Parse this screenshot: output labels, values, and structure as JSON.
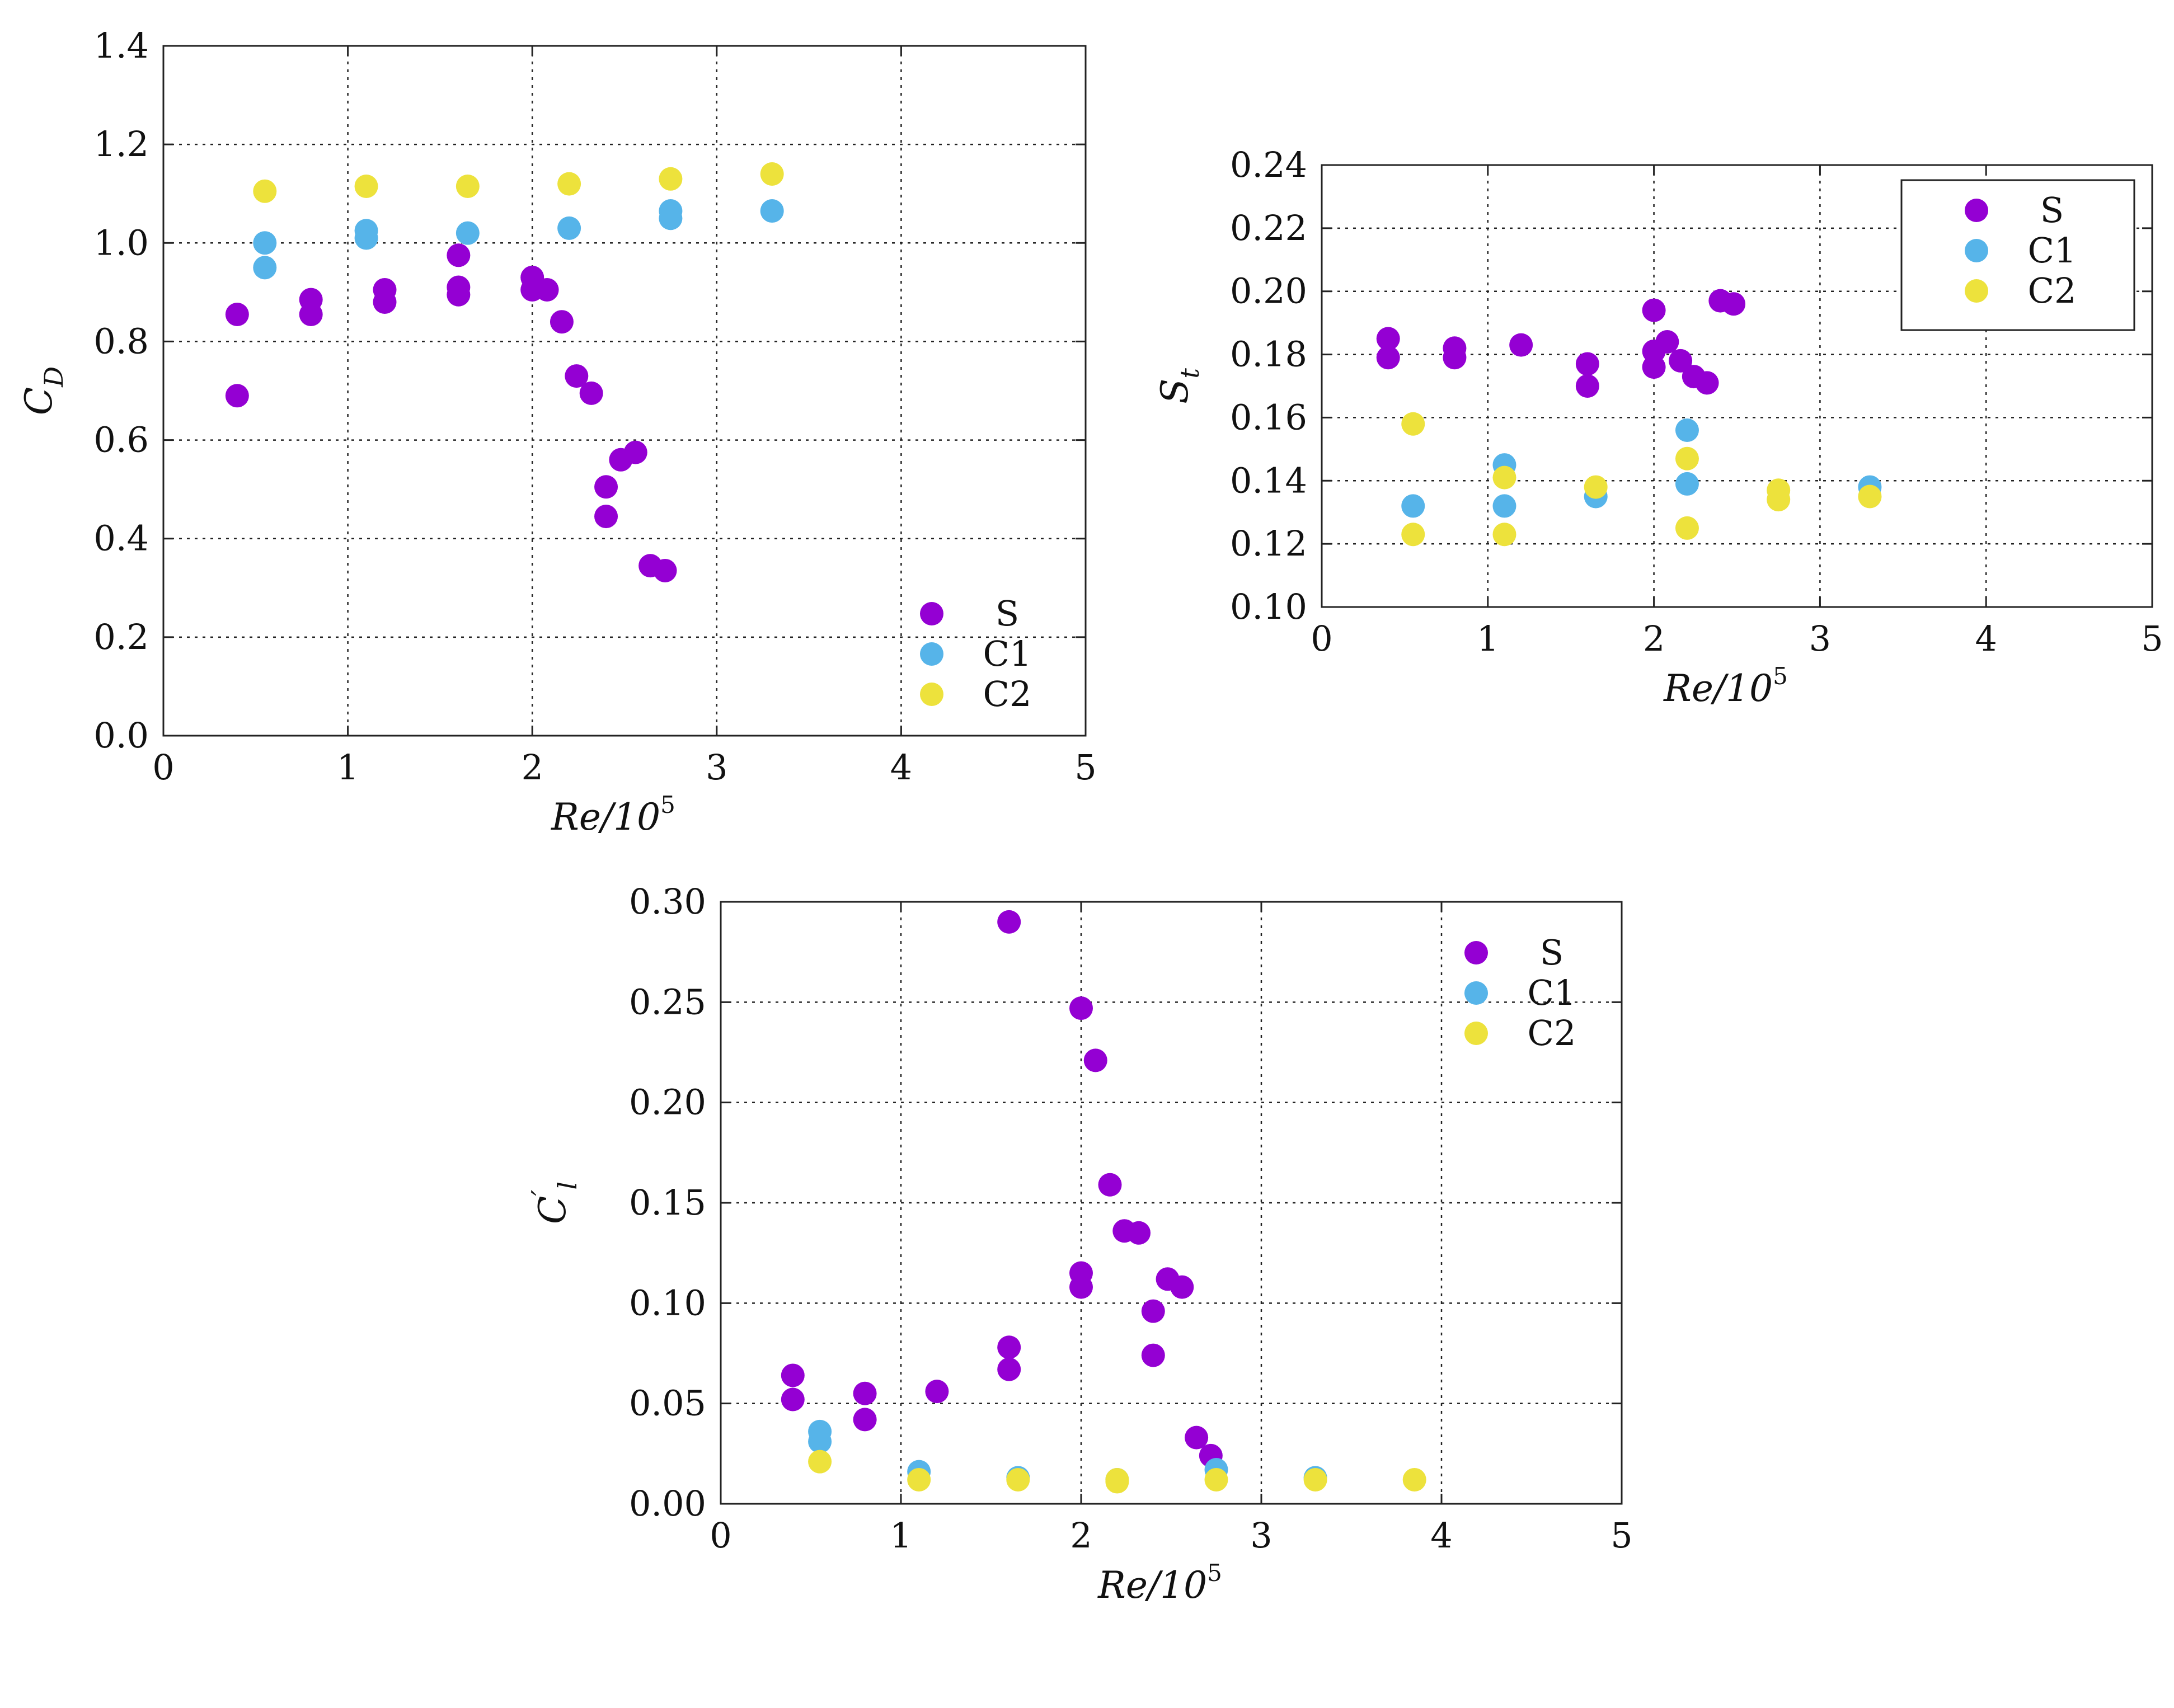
{
  "colors": {
    "S": "#9400D3",
    "C1": "#56B4E9",
    "C2": "#EDE23C"
  },
  "chart_data": [
    {
      "id": "cd",
      "type": "scatter",
      "xlabel": "Re/10^5",
      "xlabel_main": "Re/10",
      "xlabel_sup": "5",
      "ylabel": "C_D",
      "ylabel_main": "C",
      "ylabel_sub": "D",
      "ylabel_prime": "",
      "xlim": [
        0,
        5
      ],
      "ylim": [
        0,
        1.4
      ],
      "xticks": [
        0,
        1,
        2,
        3,
        4,
        5
      ],
      "xtick_labels": [
        "0",
        "1",
        "2",
        "3",
        "4",
        "5"
      ],
      "yticks": [
        0,
        0.2,
        0.4,
        0.6,
        0.8,
        1.0,
        1.2,
        1.4
      ],
      "ytick_labels": [
        "0.0",
        "0.2",
        "0.4",
        "0.6",
        "0.8",
        "1.0",
        "1.2",
        "1.4"
      ],
      "grid": true,
      "legend_position": "bottom-right",
      "legend_boxed": false,
      "series": [
        {
          "name": "S",
          "points": [
            [
              0.4,
              0.855
            ],
            [
              0.4,
              0.69
            ],
            [
              0.8,
              0.885
            ],
            [
              0.8,
              0.855
            ],
            [
              1.2,
              0.905
            ],
            [
              1.2,
              0.88
            ],
            [
              1.6,
              0.975
            ],
            [
              1.6,
              0.91
            ],
            [
              1.6,
              0.895
            ],
            [
              2.0,
              0.93
            ],
            [
              2.0,
              0.905
            ],
            [
              2.08,
              0.905
            ],
            [
              2.16,
              0.84
            ],
            [
              2.24,
              0.73
            ],
            [
              2.32,
              0.695
            ],
            [
              2.4,
              0.505
            ],
            [
              2.4,
              0.445
            ],
            [
              2.48,
              0.56
            ],
            [
              2.56,
              0.575
            ],
            [
              2.64,
              0.345
            ],
            [
              2.72,
              0.335
            ]
          ]
        },
        {
          "name": "C1",
          "points": [
            [
              0.55,
              1.0
            ],
            [
              0.55,
              0.95
            ],
            [
              1.1,
              1.025
            ],
            [
              1.1,
              1.01
            ],
            [
              1.65,
              1.02
            ],
            [
              2.2,
              1.03
            ],
            [
              2.75,
              1.065
            ],
            [
              2.75,
              1.05
            ],
            [
              3.3,
              1.065
            ]
          ]
        },
        {
          "name": "C2",
          "points": [
            [
              0.55,
              1.105
            ],
            [
              1.1,
              1.115
            ],
            [
              1.65,
              1.115
            ],
            [
              2.2,
              1.12
            ],
            [
              2.75,
              1.13
            ],
            [
              3.3,
              1.14
            ]
          ]
        }
      ]
    },
    {
      "id": "st",
      "type": "scatter",
      "xlabel": "Re/10^5",
      "xlabel_main": "Re/10",
      "xlabel_sup": "5",
      "ylabel": "S_t",
      "ylabel_main": "S",
      "ylabel_sub": "t",
      "ylabel_prime": "",
      "xlim": [
        0,
        5
      ],
      "ylim": [
        0.1,
        0.24
      ],
      "xticks": [
        0,
        1,
        2,
        3,
        4,
        5
      ],
      "xtick_labels": [
        "0",
        "1",
        "2",
        "3",
        "4",
        "5"
      ],
      "yticks": [
        0.1,
        0.12,
        0.14,
        0.16,
        0.18,
        0.2,
        0.22,
        0.24
      ],
      "ytick_labels": [
        "0.10",
        "0.12",
        "0.14",
        "0.16",
        "0.18",
        "0.20",
        "0.22",
        "0.24"
      ],
      "grid": true,
      "legend_position": "top-right",
      "legend_boxed": true,
      "series": [
        {
          "name": "S",
          "points": [
            [
              0.4,
              0.185
            ],
            [
              0.4,
              0.179
            ],
            [
              0.8,
              0.182
            ],
            [
              0.8,
              0.179
            ],
            [
              1.2,
              0.183
            ],
            [
              1.6,
              0.177
            ],
            [
              1.6,
              0.17
            ],
            [
              2.0,
              0.194
            ],
            [
              2.0,
              0.181
            ],
            [
              2.0,
              0.176
            ],
            [
              2.08,
              0.184
            ],
            [
              2.16,
              0.178
            ],
            [
              2.24,
              0.173
            ],
            [
              2.32,
              0.171
            ],
            [
              2.4,
              0.197
            ],
            [
              2.48,
              0.196
            ]
          ]
        },
        {
          "name": "C1",
          "points": [
            [
              0.55,
              0.132
            ],
            [
              1.1,
              0.145
            ],
            [
              1.1,
              0.132
            ],
            [
              1.65,
              0.135
            ],
            [
              2.2,
              0.156
            ],
            [
              2.2,
              0.139
            ],
            [
              3.3,
              0.138
            ]
          ]
        },
        {
          "name": "C2",
          "points": [
            [
              0.55,
              0.158
            ],
            [
              0.55,
              0.123
            ],
            [
              1.1,
              0.141
            ],
            [
              1.1,
              0.123
            ],
            [
              1.65,
              0.138
            ],
            [
              2.2,
              0.147
            ],
            [
              2.2,
              0.125
            ],
            [
              2.75,
              0.137
            ],
            [
              2.75,
              0.134
            ],
            [
              3.3,
              0.135
            ]
          ]
        }
      ]
    },
    {
      "id": "cl",
      "type": "scatter",
      "xlabel": "Re/10^5",
      "xlabel_main": "Re/10",
      "xlabel_sup": "5",
      "ylabel": "C'_l",
      "ylabel_main": "C",
      "ylabel_sub": "l",
      "ylabel_prime": "′",
      "xlim": [
        0,
        5
      ],
      "ylim": [
        0,
        0.3
      ],
      "xticks": [
        0,
        1,
        2,
        3,
        4,
        5
      ],
      "xtick_labels": [
        "0",
        "1",
        "2",
        "3",
        "4",
        "5"
      ],
      "yticks": [
        0,
        0.05,
        0.1,
        0.15,
        0.2,
        0.25,
        0.3
      ],
      "ytick_labels": [
        "0.00",
        "0.05",
        "0.10",
        "0.15",
        "0.20",
        "0.25",
        "0.30"
      ],
      "grid": true,
      "legend_position": "top-right",
      "legend_boxed": false,
      "series": [
        {
          "name": "S",
          "points": [
            [
              0.4,
              0.064
            ],
            [
              0.4,
              0.052
            ],
            [
              0.8,
              0.055
            ],
            [
              0.8,
              0.042
            ],
            [
              1.2,
              0.056
            ],
            [
              1.6,
              0.29
            ],
            [
              1.6,
              0.078
            ],
            [
              1.6,
              0.067
            ],
            [
              2.0,
              0.247
            ],
            [
              2.0,
              0.115
            ],
            [
              2.0,
              0.108
            ],
            [
              2.08,
              0.221
            ],
            [
              2.16,
              0.159
            ],
            [
              2.24,
              0.136
            ],
            [
              2.32,
              0.135
            ],
            [
              2.4,
              0.096
            ],
            [
              2.4,
              0.074
            ],
            [
              2.48,
              0.112
            ],
            [
              2.56,
              0.108
            ],
            [
              2.64,
              0.033
            ],
            [
              2.72,
              0.024
            ]
          ]
        },
        {
          "name": "C1",
          "points": [
            [
              0.55,
              0.036
            ],
            [
              0.55,
              0.031
            ],
            [
              1.1,
              0.016
            ],
            [
              1.65,
              0.013
            ],
            [
              2.2,
              0.012
            ],
            [
              2.75,
              0.017
            ],
            [
              3.3,
              0.013
            ]
          ]
        },
        {
          "name": "C2",
          "points": [
            [
              0.55,
              0.021
            ],
            [
              1.1,
              0.012
            ],
            [
              1.65,
              0.012
            ],
            [
              2.2,
              0.012
            ],
            [
              2.2,
              0.011
            ],
            [
              2.75,
              0.012
            ],
            [
              3.3,
              0.012
            ],
            [
              3.85,
              0.012
            ]
          ]
        }
      ]
    }
  ]
}
